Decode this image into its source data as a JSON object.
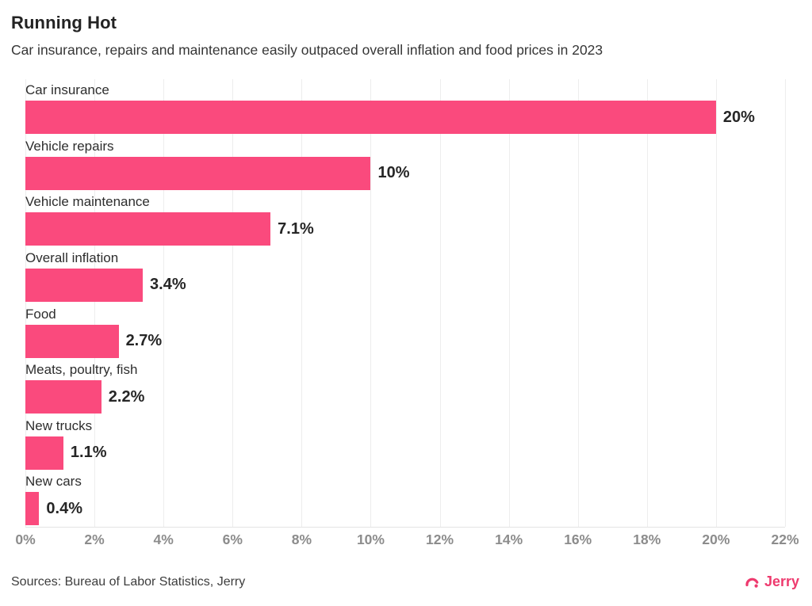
{
  "header": {
    "title": "Running Hot",
    "subtitle": "Car insurance, repairs and maintenance easily outpaced overall inflation and food prices in 2023"
  },
  "chart_data": {
    "type": "bar",
    "orientation": "horizontal",
    "title": "Running Hot",
    "subtitle": "Car insurance, repairs and maintenance easily outpaced overall inflation and food prices in 2023",
    "categories": [
      "Car insurance",
      "Vehicle repairs",
      "Vehicle maintenance",
      "Overall inflation",
      "Food",
      "Meats, poultry, fish",
      "New trucks",
      "New cars"
    ],
    "values": [
      20,
      10,
      7.1,
      3.4,
      2.7,
      2.2,
      1.1,
      0.4
    ],
    "value_labels": [
      "20%",
      "10%",
      "7.1%",
      "3.4%",
      "2.7%",
      "2.2%",
      "1.1%",
      "0.4%"
    ],
    "xlabel": "",
    "ylabel": "",
    "xlim": [
      0,
      22
    ],
    "x_tick_values": [
      0,
      2,
      4,
      6,
      8,
      10,
      12,
      14,
      16,
      18,
      20,
      22
    ],
    "x_ticks": [
      "0%",
      "2%",
      "4%",
      "6%",
      "8%",
      "10%",
      "12%",
      "14%",
      "16%",
      "18%",
      "20%",
      "22%"
    ],
    "grid": true,
    "legend": false
  },
  "colors": {
    "bar": "#fa4a7d",
    "logo": "#ee3a6e",
    "grid": "#ededed",
    "axis_text": "#8c8c8c"
  },
  "footer": {
    "sources": "Sources: Bureau of Labor Statistics, Jerry",
    "logo_text": "Jerry"
  }
}
